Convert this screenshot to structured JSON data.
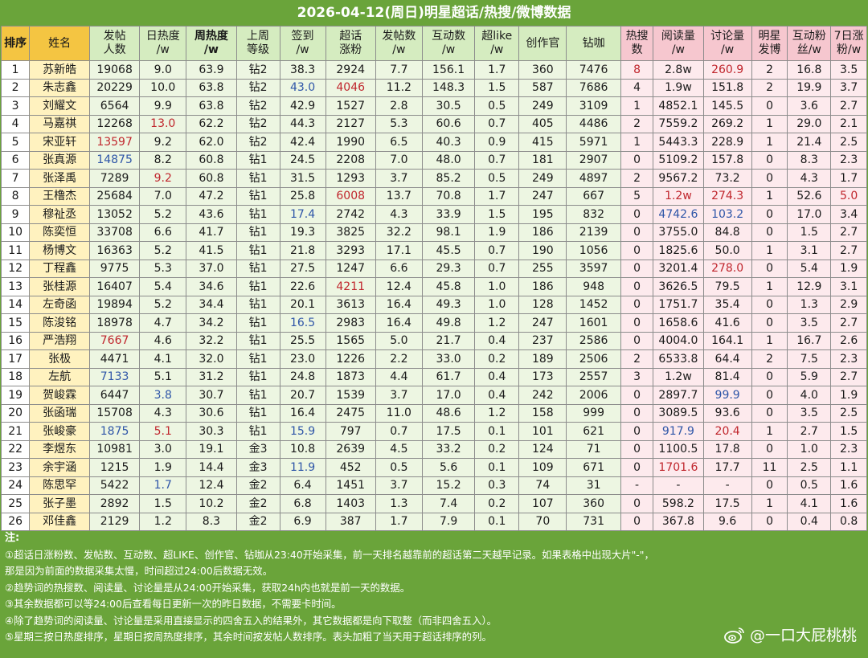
{
  "title": "2026-04-12(周日)明星超话/热搜/微博数据",
  "headers": [
    {
      "key": "rank",
      "lines": [
        "排序"
      ],
      "cls": "h-rank"
    },
    {
      "key": "name",
      "lines": [
        "姓名"
      ],
      "cls": "h-name"
    },
    {
      "key": "posters",
      "lines": [
        "发帖",
        "人数"
      ],
      "cls": "h-green"
    },
    {
      "key": "daily_heat",
      "lines": [
        "日热度",
        "/w"
      ],
      "cls": "h-green"
    },
    {
      "key": "weekly_heat",
      "lines": [
        "周热度",
        "/w"
      ],
      "cls": "h-green h-bold"
    },
    {
      "key": "last_week_level",
      "lines": [
        "上周",
        "等级"
      ],
      "cls": "h-green"
    },
    {
      "key": "checkin",
      "lines": [
        "签到",
        "/w"
      ],
      "cls": "h-green"
    },
    {
      "key": "topic_fans_gain",
      "lines": [
        "超话",
        "涨粉"
      ],
      "cls": "h-green"
    },
    {
      "key": "posts",
      "lines": [
        "发帖数",
        "/w"
      ],
      "cls": "h-green"
    },
    {
      "key": "interactions",
      "lines": [
        "互动数",
        "/w"
      ],
      "cls": "h-green"
    },
    {
      "key": "super_like",
      "lines": [
        "超like",
        "/w"
      ],
      "cls": "h-green"
    },
    {
      "key": "creators",
      "lines": [
        "创作官"
      ],
      "cls": "h-green"
    },
    {
      "key": "diamond_coffee",
      "lines": [
        "钻咖"
      ],
      "cls": "h-green"
    },
    {
      "key": "hot_search",
      "lines": [
        "热搜",
        "数"
      ],
      "cls": "h-pink"
    },
    {
      "key": "reads",
      "lines": [
        "阅读量",
        "/w"
      ],
      "cls": "h-pink"
    },
    {
      "key": "discussions",
      "lines": [
        "讨论量",
        "/w"
      ],
      "cls": "h-pink"
    },
    {
      "key": "star_weibo",
      "lines": [
        "明星",
        "发博"
      ],
      "cls": "h-pink"
    },
    {
      "key": "interactive_fans",
      "lines": [
        "互动粉",
        "丝/w"
      ],
      "cls": "h-pink"
    },
    {
      "key": "seven_day_fans",
      "lines": [
        "7日涨",
        "粉/w"
      ],
      "cls": "h-pink"
    }
  ],
  "rows": [
    [
      "1",
      "苏新皓",
      "19068",
      "9.0",
      "63.9",
      "钻2",
      "38.3",
      "2924",
      "7.7",
      "156.1",
      "1.7",
      "360",
      "7476",
      "8",
      "2.8w",
      "260.9",
      "2",
      "16.8",
      "3.5"
    ],
    [
      "2",
      "朱志鑫",
      "20229",
      "10.0",
      "63.8",
      "钻2",
      "43.0",
      "4046",
      "11.2",
      "148.3",
      "1.5",
      "587",
      "7686",
      "4",
      "1.9w",
      "151.8",
      "2",
      "19.9",
      "3.7"
    ],
    [
      "3",
      "刘耀文",
      "6564",
      "9.9",
      "63.8",
      "钻2",
      "42.9",
      "1527",
      "2.8",
      "30.5",
      "0.5",
      "249",
      "3109",
      "1",
      "4852.1",
      "145.5",
      "0",
      "3.6",
      "2.7"
    ],
    [
      "4",
      "马嘉祺",
      "12268",
      "13.0",
      "62.2",
      "钻2",
      "44.3",
      "2127",
      "5.3",
      "60.6",
      "0.7",
      "405",
      "4486",
      "2",
      "7559.2",
      "269.2",
      "1",
      "29.0",
      "2.1"
    ],
    [
      "5",
      "宋亚轩",
      "13597",
      "9.2",
      "62.0",
      "钻2",
      "42.4",
      "1990",
      "6.5",
      "40.3",
      "0.9",
      "415",
      "5971",
      "1",
      "5443.3",
      "228.9",
      "1",
      "21.4",
      "2.5"
    ],
    [
      "6",
      "张真源",
      "14875",
      "8.2",
      "60.8",
      "钻1",
      "24.5",
      "2208",
      "7.0",
      "48.0",
      "0.7",
      "181",
      "2907",
      "0",
      "5109.2",
      "157.8",
      "0",
      "8.3",
      "2.3"
    ],
    [
      "7",
      "张泽禹",
      "7289",
      "9.2",
      "60.8",
      "钻1",
      "31.5",
      "1293",
      "3.7",
      "85.2",
      "0.5",
      "249",
      "4897",
      "2",
      "9567.2",
      "73.2",
      "0",
      "4.3",
      "1.7"
    ],
    [
      "8",
      "王橹杰",
      "25684",
      "7.0",
      "47.2",
      "钻1",
      "25.8",
      "6008",
      "13.7",
      "70.8",
      "1.7",
      "247",
      "667",
      "5",
      "1.2w",
      "274.3",
      "1",
      "52.6",
      "5.0"
    ],
    [
      "9",
      "穆祉丞",
      "13052",
      "5.2",
      "43.6",
      "钻1",
      "17.4",
      "2742",
      "4.3",
      "33.9",
      "1.5",
      "195",
      "832",
      "0",
      "4742.6",
      "103.2",
      "0",
      "17.0",
      "3.4"
    ],
    [
      "10",
      "陈奕恒",
      "33708",
      "6.6",
      "41.7",
      "钻1",
      "19.3",
      "3825",
      "32.2",
      "98.1",
      "1.9",
      "186",
      "2139",
      "0",
      "3755.0",
      "84.8",
      "0",
      "1.5",
      "2.7"
    ],
    [
      "11",
      "杨博文",
      "16363",
      "5.2",
      "41.5",
      "钻1",
      "21.8",
      "3293",
      "17.1",
      "45.5",
      "0.7",
      "190",
      "1056",
      "0",
      "1825.6",
      "50.0",
      "1",
      "3.1",
      "2.7"
    ],
    [
      "12",
      "丁程鑫",
      "9775",
      "5.3",
      "37.0",
      "钻1",
      "27.5",
      "1247",
      "6.6",
      "29.3",
      "0.7",
      "255",
      "3597",
      "0",
      "3201.4",
      "278.0",
      "0",
      "5.4",
      "1.9"
    ],
    [
      "13",
      "张桂源",
      "16407",
      "5.4",
      "34.6",
      "钻1",
      "22.6",
      "4211",
      "12.4",
      "45.8",
      "1.0",
      "186",
      "948",
      "0",
      "3626.5",
      "79.5",
      "1",
      "12.9",
      "3.1"
    ],
    [
      "14",
      "左奇函",
      "19894",
      "5.2",
      "34.4",
      "钻1",
      "20.1",
      "3613",
      "16.4",
      "49.3",
      "1.0",
      "128",
      "1452",
      "0",
      "1751.7",
      "35.4",
      "0",
      "1.3",
      "2.9"
    ],
    [
      "15",
      "陈浚铭",
      "18978",
      "4.7",
      "34.2",
      "钻1",
      "16.5",
      "2983",
      "16.4",
      "49.8",
      "1.2",
      "247",
      "1601",
      "0",
      "1658.6",
      "41.6",
      "0",
      "3.5",
      "2.7"
    ],
    [
      "16",
      "严浩翔",
      "7667",
      "4.6",
      "32.2",
      "钻1",
      "25.5",
      "1565",
      "5.0",
      "21.7",
      "0.4",
      "237",
      "2586",
      "0",
      "4004.0",
      "164.1",
      "1",
      "16.7",
      "2.6"
    ],
    [
      "17",
      "张极",
      "4471",
      "4.1",
      "32.0",
      "钻1",
      "23.0",
      "1226",
      "2.2",
      "33.0",
      "0.2",
      "189",
      "2506",
      "2",
      "6533.8",
      "64.4",
      "2",
      "7.5",
      "2.3"
    ],
    [
      "18",
      "左航",
      "7133",
      "5.1",
      "31.2",
      "钻1",
      "24.8",
      "1873",
      "4.4",
      "61.7",
      "0.4",
      "173",
      "2557",
      "3",
      "1.2w",
      "81.4",
      "0",
      "5.9",
      "2.7"
    ],
    [
      "19",
      "贺峻霖",
      "6447",
      "3.8",
      "30.7",
      "钻1",
      "20.7",
      "1539",
      "3.7",
      "17.0",
      "0.4",
      "242",
      "2006",
      "0",
      "2897.7",
      "99.9",
      "0",
      "4.0",
      "1.9"
    ],
    [
      "20",
      "张函瑞",
      "15708",
      "4.3",
      "30.6",
      "钻1",
      "16.4",
      "2475",
      "11.0",
      "48.6",
      "1.2",
      "158",
      "999",
      "0",
      "3089.5",
      "93.6",
      "0",
      "3.5",
      "2.5"
    ],
    [
      "21",
      "张峻豪",
      "1875",
      "5.1",
      "30.3",
      "钻1",
      "15.9",
      "797",
      "0.7",
      "17.5",
      "0.1",
      "101",
      "621",
      "0",
      "917.9",
      "20.4",
      "1",
      "2.7",
      "1.5"
    ],
    [
      "22",
      "李煜东",
      "10981",
      "3.0",
      "19.1",
      "金3",
      "10.8",
      "2639",
      "4.5",
      "33.2",
      "0.2",
      "124",
      "71",
      "0",
      "1100.5",
      "17.8",
      "0",
      "1.0",
      "2.3"
    ],
    [
      "23",
      "余宇涵",
      "1215",
      "1.9",
      "14.4",
      "金3",
      "11.9",
      "452",
      "0.5",
      "5.6",
      "0.1",
      "109",
      "671",
      "0",
      "1701.6",
      "17.7",
      "11",
      "2.5",
      "1.1"
    ],
    [
      "24",
      "陈思罕",
      "5422",
      "1.7",
      "12.4",
      "金2",
      "6.4",
      "1451",
      "3.7",
      "15.2",
      "0.3",
      "74",
      "31",
      "-",
      "-",
      "-",
      "0",
      "0.5",
      "1.6"
    ],
    [
      "25",
      "张子墨",
      "2892",
      "1.5",
      "10.2",
      "金2",
      "6.8",
      "1403",
      "1.3",
      "7.4",
      "0.2",
      "107",
      "360",
      "0",
      "598.2",
      "17.5",
      "1",
      "4.1",
      "1.6"
    ],
    [
      "26",
      "邓佳鑫",
      "2129",
      "1.2",
      "8.3",
      "金2",
      "6.9",
      "387",
      "1.7",
      "7.9",
      "0.1",
      "70",
      "731",
      "0",
      "367.8",
      "9.6",
      "0",
      "0.4",
      "0.8"
    ]
  ],
  "highlights": {
    "red": [
      "0-13",
      "0-15",
      "1-7",
      "3-3",
      "4-2",
      "6-3",
      "7-7",
      "7-14",
      "7-15",
      "7-18",
      "11-15",
      "12-7",
      "15-2",
      "20-3",
      "20-15",
      "22-14"
    ],
    "blue": [
      "1-6",
      "5-2",
      "8-6",
      "8-14",
      "8-15",
      "14-6",
      "17-2",
      "18-3",
      "18-15",
      "20-2",
      "20-6",
      "20-14",
      "22-6",
      "23-3"
    ]
  },
  "notes": {
    "heading": "注:",
    "lines": [
      "①超话日涨粉数、发帖数、互动数、超LIKE、创作官、钻咖从23:40开始采集，前一天排名越靠前的超话第二天越早记录。如果表格中出现大片\"-\"，",
      "那是因为前面的数据采集太慢，时间超过24:00后数据无效。",
      "②趋势词的热搜数、阅读量、讨论量是从24:00开始采集，获取24h内也就是前一天的数据。",
      "③其余数据都可以等24:00后查看每日更新一次的昨日数据，不需要卡时间。",
      "④除了趋势词的阅读量、讨论量是采用直接显示的四舍五入的结果外，其它数据都是向下取整（而非四舍五入）。",
      "⑤星期三按日热度排序，星期日按周热度排序，其余时间按发帖人数排序。表头加粗了当天用于超话排序的列。"
    ]
  },
  "watermark": {
    "icon": "weibo-logo-icon",
    "text": "@一口大屁桃桃"
  },
  "colors": {
    "background": "#6aa43a",
    "header_gold": "#f4c542",
    "header_green": "#d5ecc0",
    "header_pink": "#f6c7cf",
    "red_text": "#c0262d",
    "blue_text": "#2f56a8"
  }
}
